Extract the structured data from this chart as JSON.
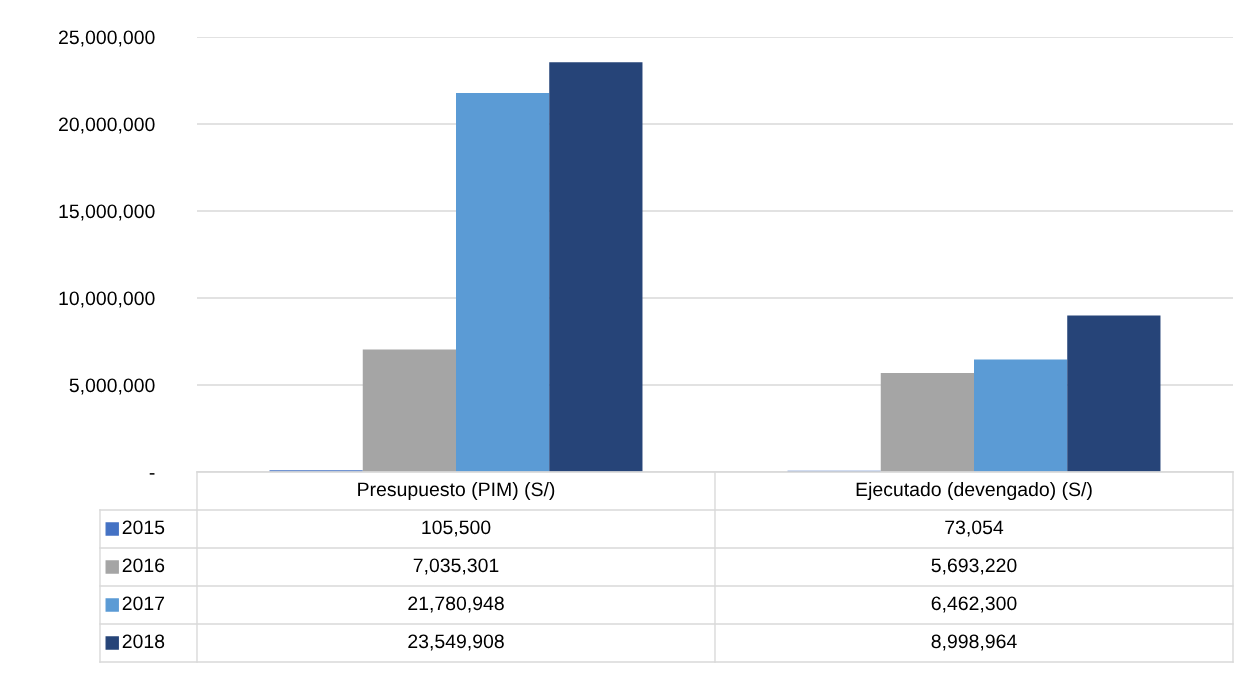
{
  "chart_data": {
    "type": "bar",
    "categories": [
      "Presupuesto (PIM) (S/)",
      "Ejecutado (devengado) (S/)"
    ],
    "series": [
      {
        "name": "2015",
        "color": "#4472c4",
        "values": [
          105500,
          73054
        ],
        "value_labels": [
          "105,500",
          "73,054"
        ]
      },
      {
        "name": "2016",
        "color": "#a5a5a5",
        "values": [
          7035301,
          5693220
        ],
        "value_labels": [
          "7,035,301",
          "5,693,220"
        ]
      },
      {
        "name": "2017",
        "color": "#5b9bd5",
        "values": [
          21780948,
          6462300
        ],
        "value_labels": [
          "21,780,948",
          "6,462,300"
        ]
      },
      {
        "name": "2018",
        "color": "#264478",
        "values": [
          23549908,
          8998964
        ],
        "value_labels": [
          "23,549,908",
          "8,998,964"
        ]
      }
    ],
    "ylim": [
      0,
      25000000
    ],
    "yticks": [
      {
        "value": 0,
        "label": "-"
      },
      {
        "value": 5000000,
        "label": "5,000,000"
      },
      {
        "value": 10000000,
        "label": "10,000,000"
      },
      {
        "value": 15000000,
        "label": "15,000,000"
      },
      {
        "value": 20000000,
        "label": "20,000,000"
      },
      {
        "value": 25000000,
        "label": "25,000,000"
      }
    ],
    "grid": "y",
    "legend": "bottom"
  }
}
